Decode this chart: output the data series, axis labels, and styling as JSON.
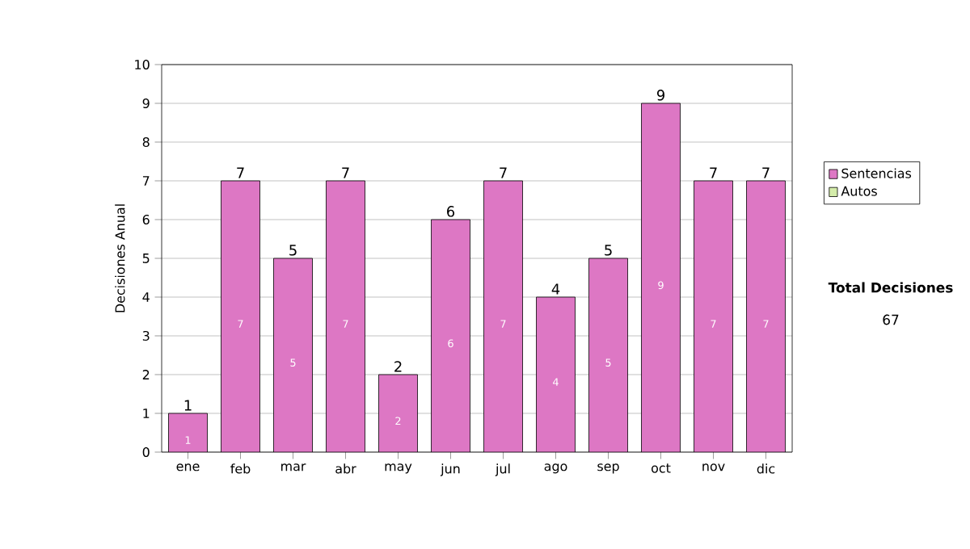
{
  "chart_data": {
    "type": "bar",
    "stacked": true,
    "ylabel": "Decisiones Anual",
    "categories": [
      "ene",
      "feb",
      "mar",
      "abr",
      "may",
      "jun",
      "jul",
      "ago",
      "sep",
      "oct",
      "nov",
      "dic"
    ],
    "series": [
      {
        "name": "Sentencias",
        "color": "#dd77c4",
        "values": [
          1,
          7,
          5,
          7,
          2,
          6,
          7,
          4,
          5,
          9,
          7,
          7
        ],
        "value_labels": [
          "1",
          "7",
          "5",
          "7",
          "2",
          "6",
          "7",
          "4",
          "5",
          "9",
          "7",
          "7"
        ]
      },
      {
        "name": "Autos",
        "color": "#d4ecaa",
        "values": [
          0,
          0,
          0,
          0,
          0,
          0,
          0,
          0,
          0,
          0,
          0,
          0
        ]
      }
    ],
    "totals": [
      "1",
      "7",
      "5",
      "7",
      "2",
      "6",
      "7",
      "4",
      "5",
      "9",
      "7",
      "7"
    ],
    "ylim": [
      0,
      10
    ],
    "yticks": [
      0,
      1,
      2,
      3,
      4,
      5,
      6,
      7,
      8,
      9,
      10
    ],
    "grid": "y",
    "legend": "right",
    "annotations": [
      "Total Decisiones",
      "67"
    ]
  }
}
